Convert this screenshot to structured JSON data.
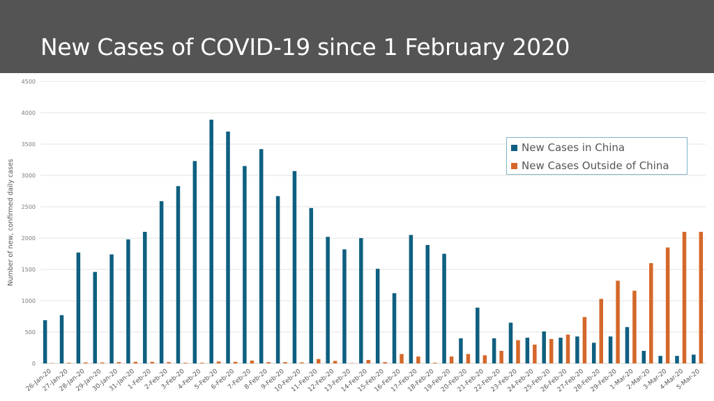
{
  "page": {
    "title": "New Cases of COVID-19 since 1 February 2020",
    "header_color": "#545454"
  },
  "chart_data": {
    "type": "bar",
    "title": "",
    "xlabel": "",
    "ylabel": "Number of new, confirmed daily cases",
    "ylim": [
      0,
      4500
    ],
    "yticks": [
      0,
      500,
      1000,
      1500,
      2000,
      2500,
      3000,
      3500,
      4000,
      4500
    ],
    "grid": true,
    "legend_position": "top-right",
    "categories": [
      "26-Jan-20",
      "27-Jan-20",
      "28-Jan-20",
      "29-Jan-20",
      "30-Jan-20",
      "31-Jan-20",
      "1-Feb-20",
      "2-Feb-20",
      "3-Feb-20",
      "4-Feb-20",
      "5-Feb-20",
      "6-Feb-20",
      "7-Feb-20",
      "8-Feb-20",
      "9-Feb-20",
      "10-Feb-20",
      "11-Feb-20",
      "12-Feb-20",
      "13-Feb-20",
      "14-Feb-20",
      "15-Feb-20",
      "16-Feb-20",
      "17-Feb-20",
      "18-Feb-20",
      "19-Feb-20",
      "20-Feb-20",
      "21-Feb-20",
      "22-Feb-20",
      "23-Feb-20",
      "24-Feb-20",
      "25-Feb-20",
      "26-Feb-20",
      "27-Feb-20",
      "28-Feb-20",
      "29-Feb-20",
      "1-Mar-20",
      "2-Mar-20",
      "3-Mar-20",
      "4-Mar-20",
      "5-Mar-20"
    ],
    "series": [
      {
        "name": "New Cases in China",
        "color": "#0f5f80",
        "values": [
          690,
          770,
          1770,
          1460,
          1740,
          1980,
          2100,
          2590,
          2830,
          3230,
          3890,
          3700,
          3150,
          3420,
          2670,
          3070,
          2480,
          2020,
          1820,
          2000,
          1510,
          1120,
          2050,
          1890,
          1750,
          400,
          890,
          400,
          650,
          410,
          510,
          410,
          430,
          330,
          430,
          580,
          200,
          120,
          120,
          140
        ]
      },
      {
        "name": "New Cases Outside of China",
        "color": "#d4682a",
        "values": [
          5,
          10,
          15,
          15,
          20,
          25,
          25,
          20,
          10,
          10,
          30,
          25,
          45,
          20,
          20,
          15,
          70,
          40,
          5,
          55,
          20,
          150,
          110,
          10,
          110,
          150,
          130,
          200,
          370,
          300,
          390,
          460,
          740,
          1030,
          1320,
          1160,
          1600,
          1850,
          2100,
          2100
        ]
      }
    ]
  }
}
